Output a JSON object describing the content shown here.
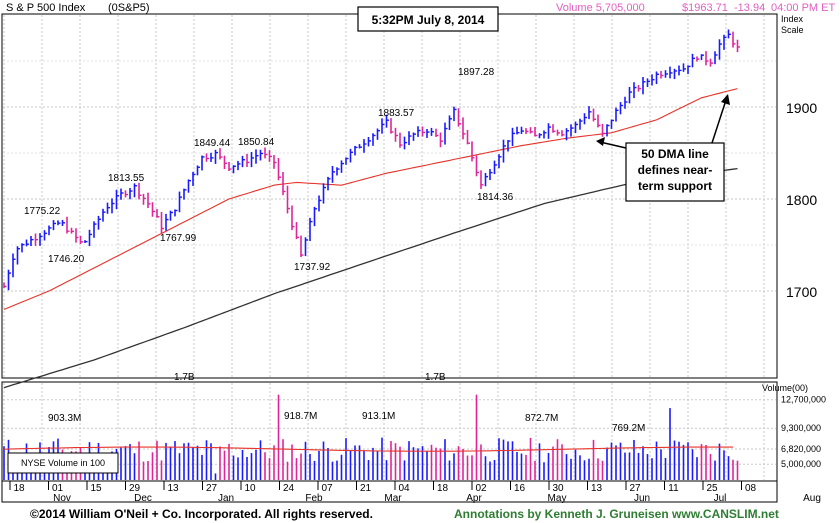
{
  "header": {
    "index_name": "S & P 500 Index",
    "symbol": "(0S&P5)",
    "volume": "Volume 5,705,000",
    "price": "$1963.71",
    "change": "-13.94",
    "time": "04:00 PM ET"
  },
  "timestamp_box": "5:32PM July 8, 2014",
  "index_scale_label": [
    "Index",
    "Scale"
  ],
  "callout": [
    "50 DMA line",
    "defines near-",
    "term support"
  ],
  "price_axis": {
    "labels": [
      "1900",
      "1800",
      "1700"
    ],
    "values": [
      1900,
      1800,
      1700
    ]
  },
  "volume_axis": {
    "title": "Volume(00)",
    "labels": [
      "12,700,000",
      "9,300,000",
      "6,820,000",
      "5,000,000"
    ],
    "values": [
      12700000,
      9300000,
      6820000,
      5000000
    ]
  },
  "volume_legend": "NYSE Volume in 100",
  "x_axis": {
    "labels": [
      "18",
      "01",
      "15",
      "29",
      "13",
      "27",
      "10",
      "24",
      "07",
      "21",
      "04",
      "18",
      "02",
      "16",
      "30",
      "13",
      "27",
      "11",
      "25",
      "08"
    ],
    "months": [
      "Nov",
      "Dec",
      "Jan",
      "Feb",
      "Mar",
      "Apr",
      "May",
      "Jun",
      "Jul",
      "Aug"
    ]
  },
  "footer": {
    "left": "©2014 William O'Neil + Co. Incorporated. All rights reserved.",
    "right": "Annotations by Kenneth J. Gruneisen www.CANSLIM.net"
  },
  "colors": {
    "up": "#1a1aff",
    "down": "#e0249a",
    "dma50": "#e8332a",
    "dma200": "#333333",
    "header_pink": "#e060c0",
    "footer_green": "#2e7d32"
  },
  "chart_data": {
    "type": "ohlc",
    "title": "S & P 500 Index",
    "price_annotations": [
      {
        "label": "1775.22",
        "value": 1775.22,
        "period": "Nov 2013"
      },
      {
        "label": "1746.20",
        "value": 1746.2,
        "period": "Nov 2013"
      },
      {
        "label": "1813.55",
        "value": 1813.55,
        "period": "Nov 2013"
      },
      {
        "label": "1767.99",
        "value": 1767.99,
        "period": "Dec 2013"
      },
      {
        "label": "1849.44",
        "value": 1849.44,
        "period": "Dec 2013"
      },
      {
        "label": "1850.84",
        "value": 1850.84,
        "period": "Jan 2014"
      },
      {
        "label": "1737.92",
        "value": 1737.92,
        "period": "Feb 2014"
      },
      {
        "label": "1883.57",
        "value": 1883.57,
        "period": "Mar 2014"
      },
      {
        "label": "1897.28",
        "value": 1897.28,
        "period": "Apr 2014"
      },
      {
        "label": "1814.36",
        "value": 1814.36,
        "period": "Apr 2014"
      }
    ],
    "volume_annotations": [
      {
        "label": "903.3M",
        "period": "Nov 2013"
      },
      {
        "label": "1.7B",
        "period": "Dec 2013"
      },
      {
        "label": "918.7M",
        "period": "Feb 2014"
      },
      {
        "label": "913.1M",
        "period": "Mar 2014"
      },
      {
        "label": "1.7B",
        "period": "Mar 2014"
      },
      {
        "label": "872.7M",
        "period": "May 2014"
      },
      {
        "label": "769.2M",
        "period": "Jun 2014"
      }
    ],
    "price_path": [
      [
        0,
        1705
      ],
      [
        5,
        1745
      ],
      [
        15,
        1760
      ],
      [
        25,
        1775
      ],
      [
        35,
        1750
      ],
      [
        45,
        1790
      ],
      [
        52,
        1805
      ],
      [
        58,
        1813
      ],
      [
        64,
        1795
      ],
      [
        70,
        1770
      ],
      [
        76,
        1790
      ],
      [
        82,
        1820
      ],
      [
        88,
        1845
      ],
      [
        94,
        1849
      ],
      [
        100,
        1835
      ],
      [
        108,
        1842
      ],
      [
        114,
        1850
      ],
      [
        120,
        1840
      ],
      [
        126,
        1790
      ],
      [
        132,
        1738
      ],
      [
        138,
        1790
      ],
      [
        146,
        1830
      ],
      [
        152,
        1845
      ],
      [
        158,
        1858
      ],
      [
        164,
        1870
      ],
      [
        170,
        1883
      ],
      [
        176,
        1860
      ],
      [
        182,
        1870
      ],
      [
        188,
        1875
      ],
      [
        194,
        1865
      ],
      [
        200,
        1895
      ],
      [
        206,
        1860
      ],
      [
        212,
        1815
      ],
      [
        218,
        1840
      ],
      [
        224,
        1865
      ],
      [
        230,
        1875
      ],
      [
        236,
        1868
      ],
      [
        242,
        1878
      ],
      [
        248,
        1872
      ],
      [
        254,
        1880
      ],
      [
        260,
        1895
      ],
      [
        266,
        1870
      ],
      [
        272,
        1895
      ],
      [
        278,
        1915
      ],
      [
        284,
        1925
      ],
      [
        290,
        1935
      ],
      [
        296,
        1940
      ],
      [
        302,
        1942
      ],
      [
        308,
        1955
      ],
      [
        314,
        1950
      ],
      [
        318,
        1968
      ],
      [
        322,
        1978
      ],
      [
        326,
        1963.71
      ]
    ],
    "dma50_path": [
      [
        0,
        1680
      ],
      [
        20,
        1700
      ],
      [
        40,
        1725
      ],
      [
        60,
        1750
      ],
      [
        80,
        1775
      ],
      [
        100,
        1800
      ],
      [
        120,
        1815
      ],
      [
        130,
        1818
      ],
      [
        150,
        1815
      ],
      [
        170,
        1828
      ],
      [
        190,
        1838
      ],
      [
        210,
        1848
      ],
      [
        230,
        1858
      ],
      [
        250,
        1866
      ],
      [
        270,
        1872
      ],
      [
        290,
        1886
      ],
      [
        310,
        1910
      ],
      [
        326,
        1920
      ]
    ],
    "dma200_path": [
      [
        0,
        1595
      ],
      [
        40,
        1625
      ],
      [
        80,
        1660
      ],
      [
        120,
        1697
      ],
      [
        160,
        1730
      ],
      [
        200,
        1763
      ],
      [
        240,
        1795
      ],
      [
        280,
        1818
      ],
      [
        326,
        1833
      ]
    ],
    "volume_avg": 6800000,
    "highlighted_volume_bars": [
      {
        "label": "1.7B",
        "period": "Dec 2013"
      },
      {
        "label": "1.7B",
        "period": "Mar 2014"
      }
    ]
  }
}
